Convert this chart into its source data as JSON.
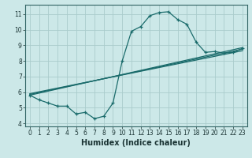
{
  "title": "",
  "xlabel": "Humidex (Indice chaleur)",
  "bg_color": "#cce8e8",
  "grid_color": "#aacccc",
  "line_color": "#1a6b6b",
  "xlim": [
    -0.5,
    23.5
  ],
  "ylim": [
    3.8,
    11.6
  ],
  "yticks": [
    4,
    5,
    6,
    7,
    8,
    9,
    10,
    11
  ],
  "xticks": [
    0,
    1,
    2,
    3,
    4,
    5,
    6,
    7,
    8,
    9,
    10,
    11,
    12,
    13,
    14,
    15,
    16,
    17,
    18,
    19,
    20,
    21,
    22,
    23
  ],
  "curve1_x": [
    0,
    1,
    2,
    3,
    4,
    5,
    6,
    7,
    8,
    9,
    10,
    11,
    12,
    13,
    14,
    15,
    16,
    17,
    18,
    19,
    20,
    21,
    22,
    23
  ],
  "curve1_y": [
    5.8,
    5.5,
    5.3,
    5.1,
    5.1,
    4.6,
    4.7,
    4.3,
    4.45,
    5.3,
    8.0,
    9.9,
    10.2,
    10.9,
    11.1,
    11.15,
    10.65,
    10.35,
    9.2,
    8.55,
    8.6,
    8.5,
    8.55,
    8.8
  ],
  "curve2_x": [
    0,
    23
  ],
  "curve2_y": [
    5.8,
    8.85
  ],
  "curve3_x": [
    0,
    23
  ],
  "curve3_y": [
    5.85,
    8.75
  ],
  "curve4_x": [
    0,
    23
  ],
  "curve4_y": [
    5.9,
    8.65
  ],
  "xlabel_fontsize": 7,
  "tick_fontsize": 5.5
}
